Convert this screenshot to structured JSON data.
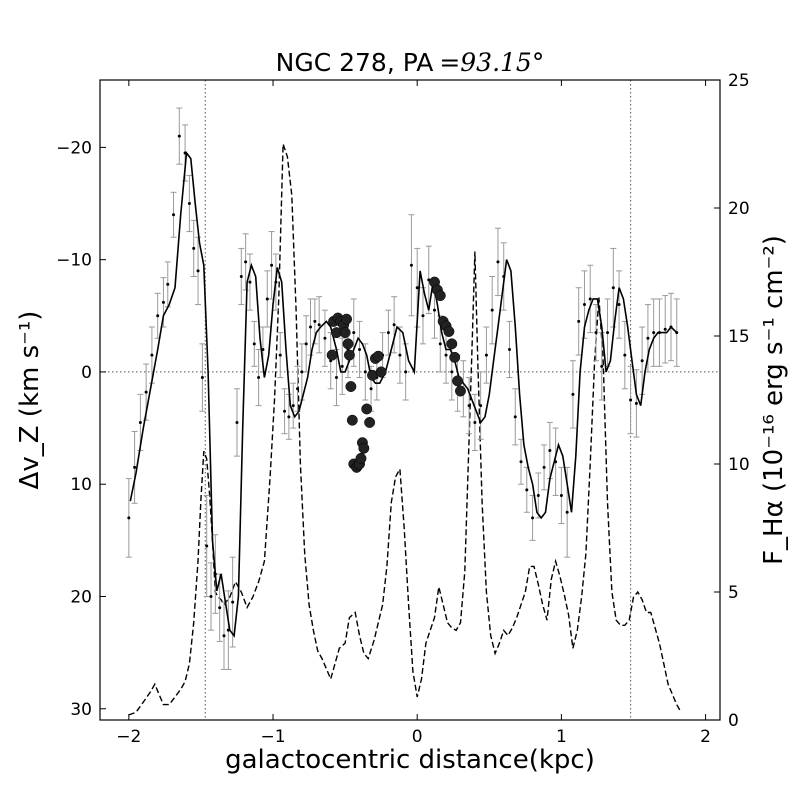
{
  "chart_data": {
    "type": "line",
    "title_text": "NGC 278, PA",
    "title_math": "=93.15°",
    "xlabel": "galactocentric distance(kpc)",
    "ylabel_left": "Δv_Z (km s⁻¹)",
    "ylabel_right": "F_Hα (10⁻¹⁶ erg s⁻¹ cm⁻²)",
    "xlim": [
      -2.2,
      2.1
    ],
    "ylim_left": [
      31,
      -26
    ],
    "ylim_right": [
      0,
      25
    ],
    "left_y_inverted": true,
    "x_ticks": [
      -2,
      -1,
      0,
      1,
      2
    ],
    "left_y_ticks": [
      -20,
      -10,
      0,
      10,
      20,
      30
    ],
    "right_y_ticks": [
      0,
      5,
      10,
      15,
      20,
      25
    ],
    "reference_lines": {
      "horizontal_y": 0,
      "vertical_x": [
        -1.47,
        1.48
      ]
    },
    "series": [
      {
        "style": "solid line (smoothed velocity, left axis)",
        "x": [
          -1.99,
          -1.95,
          -1.9,
          -1.85,
          -1.8,
          -1.76,
          -1.72,
          -1.68,
          -1.64,
          -1.6,
          -1.57,
          -1.54,
          -1.51,
          -1.48,
          -1.45,
          -1.42,
          -1.39,
          -1.36,
          -1.33,
          -1.3,
          -1.27,
          -1.24,
          -1.21,
          -1.18,
          -1.15,
          -1.12,
          -1.09,
          -1.06,
          -1.03,
          -1.0,
          -0.97,
          -0.94,
          -0.91,
          -0.88,
          -0.85,
          -0.82,
          -0.79,
          -0.76,
          -0.73,
          -0.7,
          -0.67,
          -0.63,
          -0.6,
          -0.56,
          -0.53,
          -0.5,
          -0.47,
          -0.44,
          -0.41,
          -0.38,
          -0.35,
          -0.32,
          -0.29,
          -0.26,
          -0.22,
          -0.18,
          -0.14,
          -0.1,
          -0.06,
          -0.02,
          0.02,
          0.05,
          0.08,
          0.11,
          0.14,
          0.17,
          0.2,
          0.23,
          0.26,
          0.29,
          0.32,
          0.35,
          0.38,
          0.41,
          0.44,
          0.47,
          0.5,
          0.53,
          0.56,
          0.59,
          0.62,
          0.65,
          0.68,
          0.71,
          0.74,
          0.77,
          0.8,
          0.83,
          0.86,
          0.89,
          0.92,
          0.95,
          0.98,
          1.01,
          1.04,
          1.07,
          1.1,
          1.13,
          1.16,
          1.19,
          1.22,
          1.25,
          1.28,
          1.31,
          1.34,
          1.37,
          1.4,
          1.43,
          1.46,
          1.49,
          1.52,
          1.55,
          1.58,
          1.61,
          1.64,
          1.67,
          1.7,
          1.73,
          1.76,
          1.8
        ],
        "y": [
          11.5,
          9.0,
          5.0,
          1.5,
          -2.0,
          -5.0,
          -6.0,
          -7.5,
          -14.0,
          -19.5,
          -19.0,
          -15.0,
          -11.5,
          -9.5,
          0.0,
          15.0,
          19.5,
          18.0,
          20.5,
          23.0,
          23.5,
          20.0,
          5.0,
          -8.0,
          -9.5,
          -8.5,
          -3.0,
          0.5,
          -1.5,
          -6.0,
          -9.3,
          -8.0,
          -2.0,
          3.0,
          4.0,
          3.5,
          2.0,
          0.5,
          -2.0,
          -3.5,
          -4.0,
          -4.5,
          -4.0,
          -2.0,
          0.0,
          0.0,
          -1.0,
          -2.0,
          -3.0,
          -2.5,
          -1.5,
          0.5,
          1.0,
          1.0,
          0.0,
          -2.0,
          -4.0,
          -3.5,
          -1.0,
          0.0,
          -9.0,
          -7.0,
          -5.5,
          -8.0,
          -6.0,
          -3.5,
          -2.0,
          -2.0,
          -1.0,
          0.5,
          1.0,
          1.5,
          2.5,
          3.5,
          4.5,
          4.0,
          2.0,
          -1.0,
          -4.0,
          -7.0,
          -10.0,
          -9.0,
          -4.0,
          2.0,
          6.5,
          8.5,
          10.0,
          12.5,
          13.0,
          12.5,
          9.5,
          8.0,
          6.5,
          7.5,
          10.0,
          12.5,
          7.5,
          0.0,
          -4.0,
          -5.5,
          -6.5,
          -6.5,
          -4.0,
          0.0,
          -1.0,
          -4.5,
          -7.5,
          -6.5,
          -4.0,
          -1.0,
          2.0,
          3.0,
          0.0,
          -2.0,
          -3.0,
          -3.5,
          -3.5,
          -3.5,
          -4.0,
          -3.5
        ]
      },
      {
        "style": "dashed line (H-alpha flux, right axis)",
        "x": [
          -2.0,
          -1.95,
          -1.9,
          -1.85,
          -1.82,
          -1.79,
          -1.76,
          -1.72,
          -1.68,
          -1.64,
          -1.61,
          -1.58,
          -1.55,
          -1.52,
          -1.5,
          -1.48,
          -1.46,
          -1.44,
          -1.42,
          -1.4,
          -1.38,
          -1.36,
          -1.34,
          -1.3,
          -1.26,
          -1.22,
          -1.18,
          -1.14,
          -1.1,
          -1.06,
          -1.02,
          -0.99,
          -0.96,
          -0.93,
          -0.9,
          -0.87,
          -0.84,
          -0.81,
          -0.78,
          -0.75,
          -0.72,
          -0.69,
          -0.66,
          -0.63,
          -0.6,
          -0.57,
          -0.54,
          -0.5,
          -0.47,
          -0.43,
          -0.4,
          -0.37,
          -0.34,
          -0.3,
          -0.27,
          -0.24,
          -0.21,
          -0.18,
          -0.15,
          -0.12,
          -0.09,
          -0.06,
          -0.03,
          0.0,
          0.03,
          0.06,
          0.09,
          0.12,
          0.15,
          0.18,
          0.21,
          0.24,
          0.27,
          0.3,
          0.33,
          0.36,
          0.38,
          0.4,
          0.42,
          0.45,
          0.48,
          0.51,
          0.54,
          0.57,
          0.6,
          0.63,
          0.66,
          0.69,
          0.72,
          0.75,
          0.78,
          0.81,
          0.84,
          0.87,
          0.9,
          0.93,
          0.96,
          0.99,
          1.02,
          1.05,
          1.08,
          1.11,
          1.14,
          1.17,
          1.2,
          1.23,
          1.26,
          1.29,
          1.32,
          1.35,
          1.38,
          1.41,
          1.44,
          1.47,
          1.5,
          1.53,
          1.56,
          1.59,
          1.62,
          1.65,
          1.68,
          1.71,
          1.74,
          1.77,
          1.8,
          1.83
        ],
        "y": [
          0.2,
          0.3,
          0.7,
          1.1,
          1.4,
          1.0,
          0.6,
          0.6,
          0.9,
          1.2,
          1.5,
          2.2,
          3.8,
          6.2,
          8.6,
          10.5,
          10.2,
          8.8,
          7.0,
          5.0,
          4.8,
          4.7,
          4.5,
          4.8,
          5.4,
          5.0,
          4.4,
          4.8,
          5.4,
          6.2,
          9.5,
          12.5,
          16.5,
          22.5,
          22.0,
          20.5,
          16.0,
          10.0,
          6.5,
          4.5,
          3.5,
          2.7,
          2.4,
          2.0,
          1.6,
          2.2,
          2.8,
          3.0,
          4.0,
          4.2,
          3.3,
          2.6,
          2.4,
          3.1,
          3.8,
          4.5,
          6.0,
          8.5,
          9.5,
          9.8,
          7.5,
          4.5,
          1.9,
          0.9,
          1.6,
          3.0,
          3.5,
          4.0,
          5.2,
          4.5,
          3.8,
          3.6,
          3.5,
          3.8,
          5.8,
          11.0,
          14.5,
          18.3,
          14.0,
          8.5,
          5.0,
          3.3,
          2.6,
          3.0,
          3.5,
          3.3,
          3.6,
          4.0,
          4.5,
          5.0,
          6.0,
          6.0,
          5.3,
          4.5,
          3.9,
          5.5,
          6.2,
          5.6,
          4.9,
          4.1,
          2.8,
          3.5,
          4.8,
          6.5,
          10.0,
          14.0,
          16.5,
          14.0,
          8.5,
          5.0,
          3.9,
          3.7,
          3.7,
          3.9,
          4.8,
          5.0,
          4.7,
          4.2,
          4.2,
          3.6,
          3.0,
          2.2,
          1.4,
          1.0,
          0.6,
          0.3
        ],
        "y_axis": "right"
      },
      {
        "style": "large filled circles (left axis)",
        "x": [
          -0.59,
          -0.58,
          -0.56,
          -0.55,
          -0.53,
          -0.51,
          -0.5,
          -0.49,
          -0.48,
          -0.47,
          -0.46,
          -0.45,
          -0.44,
          -0.42,
          -0.41,
          -0.4,
          -0.39,
          -0.38,
          -0.37,
          -0.35,
          -0.33,
          -0.31,
          -0.29,
          -0.27,
          -0.25,
          0.12,
          0.14,
          0.16,
          0.18,
          0.2,
          0.22,
          0.24,
          0.26,
          0.28,
          0.3
        ],
        "y": [
          -1.5,
          -4.5,
          -3.5,
          -4.8,
          -4.5,
          -4.2,
          -3.5,
          -4.7,
          -2.5,
          -1.5,
          1.3,
          4.3,
          8.2,
          8.5,
          8.3,
          8.2,
          7.7,
          6.3,
          6.8,
          3.3,
          4.5,
          0.3,
          -1.2,
          -1.4,
          0.0,
          -8.0,
          -7.3,
          -6.8,
          -4.5,
          -4.1,
          -3.6,
          -2.5,
          -1.3,
          0.8,
          1.7
        ]
      },
      {
        "style": "small dots with grey error bars (left axis)",
        "x": [
          -2.0,
          -1.96,
          -1.92,
          -1.88,
          -1.84,
          -1.8,
          -1.76,
          -1.73,
          -1.69,
          -1.65,
          -1.61,
          -1.58,
          -1.55,
          -1.52,
          -1.49,
          -1.46,
          -1.43,
          -1.4,
          -1.37,
          -1.34,
          -1.31,
          -1.28,
          -1.25,
          -1.22,
          -1.19,
          -1.16,
          -1.13,
          -1.1,
          -1.07,
          -1.04,
          -1.01,
          -0.98,
          -0.95,
          -0.92,
          -0.89,
          -0.86,
          -0.83,
          -0.8,
          -0.77,
          -0.74,
          -0.71,
          -0.68,
          -0.64,
          -0.6,
          -0.56,
          -0.52,
          -0.48,
          -0.44,
          -0.4,
          -0.36,
          -0.32,
          -0.28,
          -0.24,
          -0.2,
          -0.16,
          -0.12,
          -0.08,
          -0.04,
          0.0,
          0.04,
          0.08,
          0.12,
          0.16,
          0.2,
          0.24,
          0.28,
          0.32,
          0.36,
          0.4,
          0.44,
          0.48,
          0.52,
          0.56,
          0.6,
          0.64,
          0.68,
          0.72,
          0.76,
          0.8,
          0.84,
          0.88,
          0.92,
          0.96,
          1.0,
          1.04,
          1.08,
          1.12,
          1.16,
          1.2,
          1.24,
          1.28,
          1.32,
          1.36,
          1.4,
          1.44,
          1.48,
          1.52,
          1.56,
          1.6,
          1.64,
          1.68,
          1.72,
          1.76,
          1.8
        ],
        "y": [
          13.0,
          8.5,
          4.5,
          1.8,
          -1.5,
          -5.0,
          -6.2,
          -7.8,
          -14.0,
          -21.0,
          -19.5,
          -15.0,
          -11.0,
          -9.0,
          0.5,
          15.5,
          20.0,
          18.0,
          21.0,
          23.5,
          23.0,
          20.5,
          4.5,
          -8.5,
          -9.8,
          -8.0,
          -2.5,
          0.5,
          -2.0,
          -6.5,
          -9.5,
          -8.0,
          -1.5,
          3.5,
          4.0,
          3.0,
          1.5,
          0.0,
          -2.5,
          -4.0,
          -4.5,
          -4.2,
          -3.0,
          -1.0,
          0.5,
          -0.5,
          -2.0,
          -3.5,
          -2.0,
          0.0,
          1.5,
          0.5,
          -1.5,
          -3.5,
          -4.2,
          -1.5,
          0.0,
          -9.5,
          -7.5,
          -5.0,
          -8.2,
          -5.5,
          -2.5,
          -1.5,
          0.0,
          1.0,
          1.5,
          3.0,
          4.5,
          3.0,
          -1.5,
          -5.5,
          -9.8,
          -8.5,
          -2.0,
          4.0,
          8.0,
          10.5,
          13.0,
          11.0,
          8.5,
          7.0,
          8.0,
          11.0,
          12.5,
          2.0,
          -4.5,
          -6.0,
          -6.5,
          -3.5,
          -0.5,
          -3.5,
          -7.5,
          -6.0,
          -1.5,
          2.5,
          2.8,
          -1.0,
          -3.0,
          -3.5,
          -3.5,
          -3.8,
          -4.0,
          -3.5
        ],
        "error": [
          3.5,
          3.2,
          2.5,
          2.5,
          2.5,
          2.0,
          2.2,
          2.0,
          2.0,
          2.5,
          2.5,
          2.5,
          2.5,
          3.0,
          3.0,
          4.5,
          3.0,
          3.5,
          3.0,
          3.0,
          3.5,
          4.0,
          3.0,
          2.5,
          2.5,
          2.5,
          2.0,
          2.5,
          2.0,
          2.5,
          3.0,
          2.5,
          2.0,
          2.0,
          2.0,
          2.0,
          2.0,
          2.5,
          2.5,
          2.5,
          2.0,
          2.5,
          2.5,
          2.5,
          2.5,
          2.5,
          2.5,
          3.0,
          2.5,
          2.5,
          2.0,
          2.0,
          2.0,
          2.0,
          2.5,
          2.5,
          2.5,
          4.5,
          3.5,
          2.5,
          3.0,
          2.5,
          2.5,
          2.5,
          2.5,
          2.5,
          2.5,
          2.5,
          2.5,
          3.0,
          2.5,
          3.0,
          3.0,
          3.0,
          2.5,
          2.5,
          2.0,
          2.0,
          2.0,
          2.0,
          2.0,
          2.5,
          3.0,
          2.5,
          4.0,
          3.0,
          3.0,
          3.0,
          3.0,
          2.5,
          3.0,
          3.0,
          3.5,
          3.0,
          3.0,
          3.0,
          3.0,
          3.0,
          3.0,
          3.0,
          3.0,
          3.0,
          3.0,
          3.0
        ]
      }
    ]
  }
}
